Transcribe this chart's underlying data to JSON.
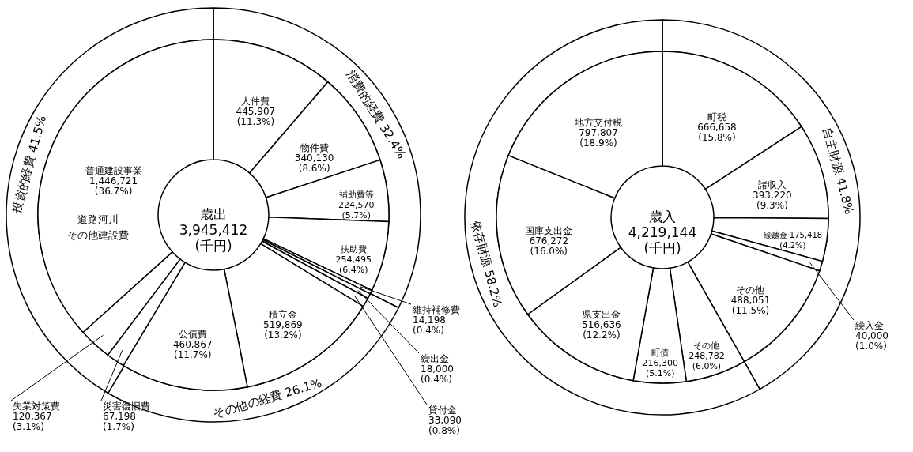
{
  "chart_data": [
    {
      "type": "donut",
      "categories": [
        "人件費",
        "物件費",
        "補助費等",
        "扶助費",
        "維持補修費",
        "繰出金",
        "貸付金",
        "積立金",
        "公債費",
        "災害復旧費",
        "失業対策費",
        "普通建設事業"
      ],
      "values": [
        445907,
        340130,
        224570,
        254495,
        14198,
        18000,
        33090,
        519869,
        460867,
        67198,
        120367,
        1446721
      ],
      "value_labels": [
        "445,907 (11.3%)",
        "340,130 (8.6%)",
        "224,570 (5.7%)",
        "254,495 (6.4%)",
        "14,198 (0.4%)",
        "18,000 (0.4%)",
        "33,090 (0.8%)",
        "519,869 (13.2%)",
        "460,867 (11.7%)",
        "67,198 (1.7%)",
        "120,367 (3.1%)",
        "1,446,721 (36.7%)"
      ],
      "colors": [
        "#ffffff",
        "#ffffff",
        "#ffffff",
        "#ffffff",
        "#ffffff",
        "#ffffff",
        "#ffffff",
        "#ffffff",
        "#ffffff",
        "#ffffff",
        "#ffffff",
        "#ffffff"
      ],
      "annotations": [
        "歳出 3,945,412 (千円)",
        "道路河川その他建設費"
      ]
    },
    {
      "type": "donut",
      "categories": [
        "消費的経費",
        "その他の経費",
        "投資的経費"
      ],
      "values": [
        32.4,
        26.1,
        41.5
      ],
      "value_labels": [
        "32.4%",
        "26.1%",
        "41.5%"
      ],
      "colors": [
        "#ffffff",
        "#ffffff",
        "#ffffff"
      ]
    },
    {
      "type": "donut",
      "categories": [
        "町税",
        "諸収入",
        "繰越金",
        "繰入金",
        "その他",
        "その他",
        "町債",
        "県支出金",
        "国庫支出金",
        "地方交付税"
      ],
      "values": [
        666658,
        393220,
        175418,
        40000,
        488051,
        248782,
        216300,
        516636,
        676272,
        797807
      ],
      "value_labels": [
        "666,658 (15.8%)",
        "393,220 (9.3%)",
        "175,418 (4.2%)",
        "40,000 (1.0%)",
        "488,051 (11.5%)",
        "248,782 (6.0%)",
        "216,300 (5.1%)",
        "516,636 (12.2%)",
        "676,272 (16.0%)",
        "797,807 (18.9%)"
      ],
      "colors": [
        "#ffffff",
        "#ffffff",
        "#ffffff",
        "#ffffff",
        "#ffffff",
        "#ffffff",
        "#ffffff",
        "#ffffff",
        "#ffffff",
        "#ffffff"
      ],
      "annotations": [
        "歳入 4,219,144 (千円)"
      ]
    },
    {
      "type": "donut",
      "categories": [
        "自主財源",
        "依存財源"
      ],
      "values": [
        41.8,
        58.2
      ],
      "value_labels": [
        "41.8%",
        "58.2%"
      ],
      "colors": [
        "#ffffff",
        "#ffffff"
      ]
    }
  ]
}
